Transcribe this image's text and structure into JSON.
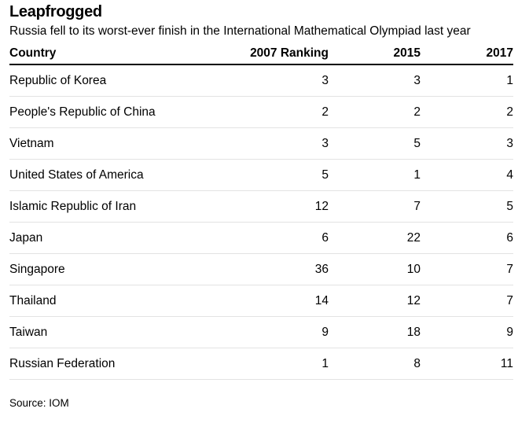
{
  "chart_data": {
    "type": "table",
    "title": "Leapfrogged",
    "subtitle": "Russia fell to its worst-ever finish in the International Mathematical Olympiad last year",
    "columns": [
      "Country",
      "2007 Ranking",
      "2015",
      "2017"
    ],
    "rows": [
      [
        "Republic of Korea",
        "3",
        "3",
        "1"
      ],
      [
        "People's Republic of China",
        "2",
        "2",
        "2"
      ],
      [
        "Vietnam",
        "3",
        "5",
        "3"
      ],
      [
        "United States of America",
        "5",
        "1",
        "4"
      ],
      [
        "Islamic Republic of Iran",
        "12",
        "7",
        "5"
      ],
      [
        "Japan",
        "6",
        "22",
        "6"
      ],
      [
        "Singapore",
        "36",
        "10",
        "7"
      ],
      [
        "Thailand",
        "14",
        "12",
        "7"
      ],
      [
        "Taiwan",
        "9",
        "18",
        "9"
      ],
      [
        "Russian Federation",
        "1",
        "8",
        "11"
      ]
    ],
    "source": "Source: IOM"
  }
}
